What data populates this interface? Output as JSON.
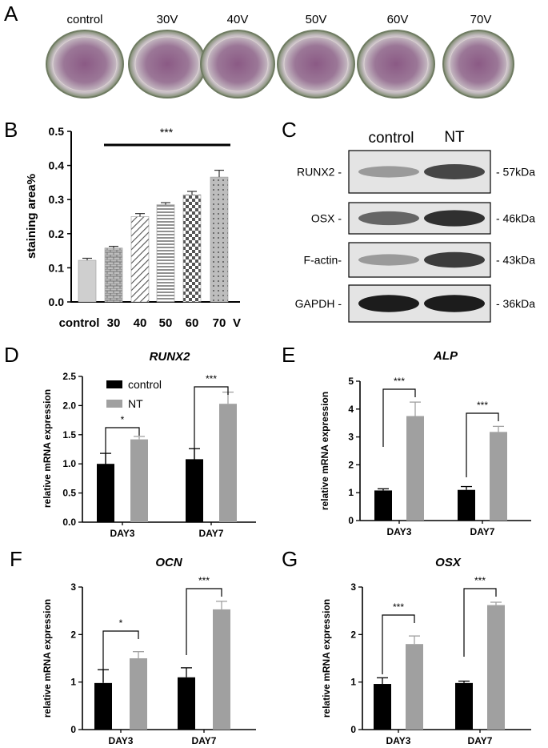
{
  "panels": {
    "A": "A",
    "B": "B",
    "C": "C",
    "D": "D",
    "E": "E",
    "F": "F",
    "G": "G"
  },
  "panel_a": {
    "labels": [
      "control",
      "30V",
      "40V",
      "50V",
      "60V",
      "70V"
    ],
    "colors": {
      "dish_edge": "#7d8a6e",
      "stain": "#7a4a7a",
      "background": "#d9d3c8"
    }
  },
  "panel_c": {
    "headers": [
      "control",
      "NT"
    ],
    "rows": [
      {
        "protein": "RUNX2 -",
        "size": "- 57kDa",
        "intensity": [
          0.35,
          0.75
        ]
      },
      {
        "protein": "OSX -",
        "size": "- 46kDa",
        "intensity": [
          0.6,
          0.85
        ]
      },
      {
        "protein": "F-actin-",
        "size": "- 43kDa",
        "intensity": [
          0.35,
          0.8
        ]
      },
      {
        "protein": "GAPDH -",
        "size": "- 36kDa",
        "intensity": [
          0.95,
          0.95
        ]
      }
    ]
  },
  "chart_data": [
    {
      "type": "bar",
      "panel": "B",
      "ylabel": "staining area%",
      "categories": [
        "control",
        "30",
        "40",
        "50",
        "60",
        "70"
      ],
      "unit_label": "V",
      "values": [
        0.122,
        0.158,
        0.25,
        0.285,
        0.314,
        0.366
      ],
      "errors": [
        0.006,
        0.005,
        0.009,
        0.006,
        0.01,
        0.02
      ],
      "ylim": [
        0,
        0.5
      ],
      "yticks": [
        "0.0",
        "0.1",
        "0.2",
        "0.3",
        "0.4",
        "0.5"
      ],
      "significance": "***"
    },
    {
      "type": "bar",
      "panel": "D",
      "title": "RUNX2",
      "ylabel": "relative mRNA expression",
      "categories": [
        "DAY3",
        "DAY7"
      ],
      "ylim": [
        0,
        2.5
      ],
      "yticks": [
        "0.0",
        "0.5",
        "1.0",
        "1.5",
        "2.0",
        "2.5"
      ],
      "series": [
        {
          "name": "control",
          "values": [
            1.0,
            1.08
          ],
          "errors": [
            0.18,
            0.18
          ]
        },
        {
          "name": "NT",
          "values": [
            1.42,
            2.03
          ],
          "errors": [
            0.05,
            0.2
          ]
        }
      ],
      "significance": [
        "*",
        "***"
      ],
      "legend": "top-left",
      "colors": [
        "#000000",
        "#a0a0a0"
      ]
    },
    {
      "type": "bar",
      "panel": "E",
      "title": "ALP",
      "ylabel": "relative mRNA expression",
      "categories": [
        "DAY3",
        "DAY7"
      ],
      "ylim": [
        0,
        5
      ],
      "yticks": [
        "0",
        "1",
        "2",
        "3",
        "4",
        "5"
      ],
      "series": [
        {
          "values": [
            1.08,
            1.1
          ],
          "errors": [
            0.06,
            0.12
          ]
        },
        {
          "values": [
            3.75,
            3.18
          ],
          "errors": [
            0.5,
            0.2
          ]
        }
      ],
      "significance": [
        "***",
        "***"
      ],
      "colors": [
        "#000000",
        "#a0a0a0"
      ]
    },
    {
      "type": "bar",
      "panel": "F",
      "title": "OCN",
      "ylabel": "relative mRNA expression",
      "categories": [
        "DAY3",
        "DAY7"
      ],
      "ylim": [
        0,
        3
      ],
      "yticks": [
        "0",
        "1",
        "2",
        "3"
      ],
      "series": [
        {
          "values": [
            0.98,
            1.1
          ],
          "errors": [
            0.28,
            0.2
          ]
        },
        {
          "values": [
            1.5,
            2.53
          ],
          "errors": [
            0.14,
            0.17
          ]
        }
      ],
      "significance": [
        "*",
        "***"
      ],
      "colors": [
        "#000000",
        "#a0a0a0"
      ]
    },
    {
      "type": "bar",
      "panel": "G",
      "title": "OSX",
      "ylabel": "relative mRNA expression",
      "categories": [
        "DAY3",
        "DAY7"
      ],
      "ylim": [
        0,
        3
      ],
      "yticks": [
        "0",
        "1",
        "2",
        "3"
      ],
      "series": [
        {
          "values": [
            0.96,
            0.98
          ],
          "errors": [
            0.13,
            0.04
          ]
        },
        {
          "values": [
            1.8,
            2.62
          ],
          "errors": [
            0.17,
            0.06
          ]
        }
      ],
      "significance": [
        "***",
        "***"
      ],
      "colors": [
        "#000000",
        "#a0a0a0"
      ]
    }
  ]
}
